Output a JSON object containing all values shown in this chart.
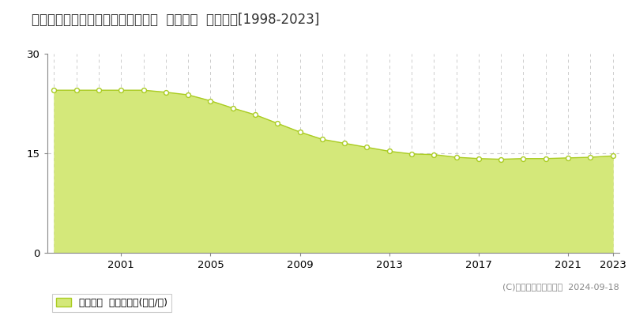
{
  "title": "青森県八戸市高州２丁目５３番５外  公示地価  地価推移[1998-2023]",
  "years": [
    1998,
    1999,
    2000,
    2001,
    2002,
    2003,
    2004,
    2005,
    2006,
    2007,
    2008,
    2009,
    2010,
    2011,
    2012,
    2013,
    2014,
    2015,
    2016,
    2017,
    2018,
    2019,
    2020,
    2021,
    2022,
    2023
  ],
  "values": [
    24.5,
    24.5,
    24.5,
    24.5,
    24.5,
    24.2,
    23.8,
    22.9,
    21.8,
    20.8,
    19.5,
    18.2,
    17.1,
    16.5,
    15.9,
    15.3,
    14.9,
    14.8,
    14.4,
    14.2,
    14.1,
    14.2,
    14.2,
    14.3,
    14.4,
    14.6
  ],
  "line_color": "#aacc22",
  "fill_color": "#d4e87a",
  "marker_facecolor": "#ffffff",
  "marker_edgecolor": "#aacc22",
  "grid_color": "#cccccc",
  "background_color": "#ffffff",
  "plot_bg_color": "#ffffff",
  "ylim": [
    0,
    30
  ],
  "yticks": [
    0,
    15,
    30
  ],
  "legend_label": "公示地価  平均坪単価(万円/坪)",
  "copyright_text": "(C)土地価格ドットコム  2024-09-18",
  "title_fontsize": 12,
  "tick_fontsize": 9.5,
  "legend_fontsize": 9,
  "copyright_fontsize": 8,
  "xtick_years": [
    2001,
    2005,
    2009,
    2013,
    2017,
    2021,
    2023
  ],
  "vgrid_years": [
    1998,
    1999,
    2000,
    2001,
    2002,
    2003,
    2004,
    2005,
    2006,
    2007,
    2008,
    2009,
    2010,
    2011,
    2012,
    2013,
    2014,
    2015,
    2016,
    2017,
    2018,
    2019,
    2020,
    2021,
    2022,
    2023
  ]
}
